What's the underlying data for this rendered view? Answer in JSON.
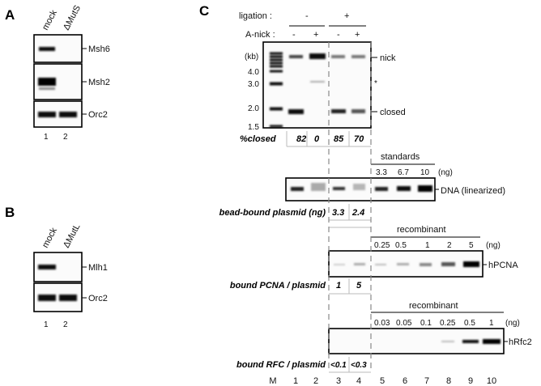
{
  "panel_a": {
    "letter": "A",
    "lanes": [
      "mock",
      "ΔMutS"
    ],
    "blots": [
      "Msh6",
      "Msh2",
      "Orc2"
    ],
    "lane_numbers": [
      "1",
      "2"
    ]
  },
  "panel_b": {
    "letter": "B",
    "lanes": [
      "mock",
      "ΔMutL"
    ],
    "blots": [
      "Mlh1",
      "Orc2"
    ],
    "lane_numbers": [
      "1",
      "2"
    ]
  },
  "panel_c": {
    "letter": "C",
    "ligation_label": "ligation :",
    "ligation_values": [
      "-",
      "+"
    ],
    "anick_label": "A-nick :",
    "anick_values": [
      "-",
      "+",
      "-",
      "+"
    ],
    "marker_unit": "(kb)",
    "marker_sizes": [
      "4.0",
      "3.0",
      "2.0",
      "1.5"
    ],
    "band_labels": {
      "nick": "nick",
      "star": "*",
      "closed": "closed"
    },
    "closed_row": {
      "label": "%closed",
      "values": [
        "82",
        "0",
        "85",
        "70"
      ]
    },
    "standards": {
      "title": "standards",
      "values": [
        "3.3",
        "6.7",
        "10"
      ],
      "unit": "(ng)",
      "blot_label": "DNA (linearized)"
    },
    "bead_row": {
      "label": "bead-bound plasmid (ng)",
      "values": [
        "3.3",
        "2.4"
      ]
    },
    "pcna": {
      "title": "recombinant",
      "values": [
        "0.25",
        "0.5",
        "1",
        "2",
        "5"
      ],
      "unit": "(ng)",
      "blot_label": "hPCNA"
    },
    "pcna_row": {
      "label": "bound PCNA / plasmid",
      "values": [
        "1",
        "5"
      ]
    },
    "rfc": {
      "title": "recombinant",
      "values": [
        "0.03",
        "0.05",
        "0.1",
        "0.25",
        "0.5",
        "1"
      ],
      "unit": "(ng)",
      "blot_label": "hRfc2"
    },
    "rfc_row": {
      "label": "bound RFC / plasmid",
      "values": [
        "<0.1",
        "<0.3"
      ]
    },
    "lane_numbers": [
      "M",
      "1",
      "2",
      "3",
      "4",
      "5",
      "6",
      "7",
      "8",
      "9",
      "10"
    ]
  }
}
